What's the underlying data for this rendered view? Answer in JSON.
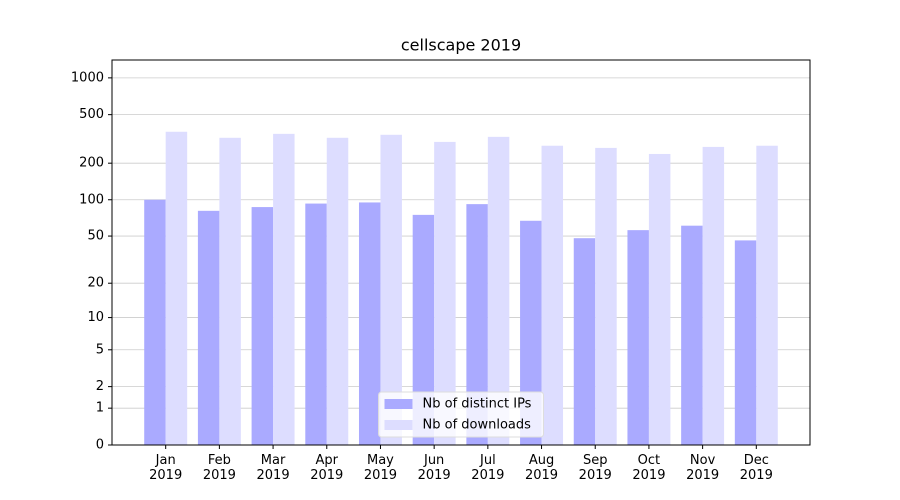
{
  "chart_data": {
    "type": "bar",
    "title": "cellscape 2019",
    "categories": [
      "Jan 2019",
      "Feb 2019",
      "Mar 2019",
      "Apr 2019",
      "May 2019",
      "Jun 2019",
      "Jul 2019",
      "Aug 2019",
      "Sep 2019",
      "Oct 2019",
      "Nov 2019",
      "Dec 2019"
    ],
    "series": [
      {
        "name": "Nb of distinct IPs",
        "color": "#aaaaff",
        "values": [
          100,
          81,
          87,
          93,
          95,
          75,
          92,
          67,
          48,
          56,
          61,
          46
        ]
      },
      {
        "name": "Nb of downloads",
        "color": "#ddddff",
        "values": [
          362,
          323,
          348,
          323,
          342,
          299,
          329,
          278,
          267,
          238,
          272,
          278
        ]
      }
    ],
    "yscale": "log1p",
    "ylim": [
      0,
      1400
    ],
    "yticks": [
      0,
      1,
      2,
      5,
      10,
      20,
      50,
      100,
      200,
      500,
      1000
    ],
    "grid": true,
    "legend": "lower center"
  }
}
